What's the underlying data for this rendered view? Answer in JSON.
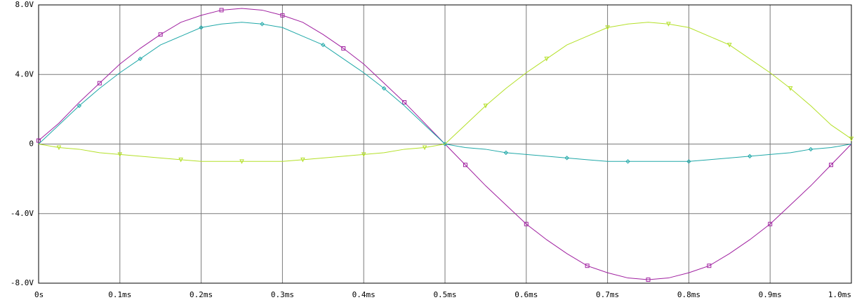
{
  "chart_data": {
    "type": "line",
    "x": [
      0,
      0.025,
      0.05,
      0.075,
      0.1,
      0.125,
      0.15,
      0.175,
      0.2,
      0.225,
      0.25,
      0.275,
      0.3,
      0.325,
      0.35,
      0.375,
      0.4,
      0.425,
      0.45,
      0.475,
      0.5,
      0.525,
      0.55,
      0.575,
      0.6,
      0.625,
      0.65,
      0.675,
      0.7,
      0.725,
      0.75,
      0.775,
      0.8,
      0.825,
      0.85,
      0.875,
      0.9,
      0.925,
      0.95,
      0.975,
      1.0
    ],
    "series": [
      {
        "color": "#a020a0",
        "marker": "square",
        "values": [
          0.2,
          1.2,
          2.4,
          3.5,
          4.6,
          5.5,
          6.3,
          7.0,
          7.4,
          7.7,
          7.8,
          7.7,
          7.4,
          7.0,
          6.3,
          5.5,
          4.6,
          3.5,
          2.4,
          1.2,
          0,
          -1.2,
          -2.4,
          -3.5,
          -4.6,
          -5.5,
          -6.3,
          -7.0,
          -7.4,
          -7.7,
          -7.8,
          -7.7,
          -7.4,
          -7.0,
          -6.3,
          -5.5,
          -4.6,
          -3.5,
          -2.4,
          -1.2,
          0
        ]
      },
      {
        "color": "#20a8a8",
        "marker": "diamond",
        "values": [
          0,
          1.1,
          2.2,
          3.2,
          4.1,
          4.9,
          5.7,
          6.2,
          6.7,
          6.9,
          7.0,
          6.9,
          6.7,
          6.2,
          5.7,
          4.9,
          4.1,
          3.2,
          2.2,
          1.1,
          0,
          -0.2,
          -0.3,
          -0.5,
          -0.6,
          -0.7,
          -0.8,
          -0.9,
          -1.0,
          -1.0,
          -1.0,
          -1.0,
          -1.0,
          -0.9,
          -0.8,
          -0.7,
          -0.6,
          -0.5,
          -0.3,
          -0.2,
          0
        ]
      },
      {
        "color": "#b4e028",
        "marker": "triangle",
        "values": [
          0,
          -0.2,
          -0.3,
          -0.5,
          -0.6,
          -0.7,
          -0.8,
          -0.9,
          -1.0,
          -1.0,
          -1.0,
          -1.0,
          -1.0,
          -0.9,
          -0.8,
          -0.7,
          -0.6,
          -0.5,
          -0.3,
          -0.2,
          0,
          1.1,
          2.2,
          3.2,
          4.1,
          4.9,
          5.7,
          6.2,
          6.7,
          6.9,
          7.0,
          6.9,
          6.7,
          6.2,
          5.7,
          4.9,
          4.1,
          3.2,
          2.2,
          1.1,
          0.3
        ]
      }
    ],
    "xlim": [
      0,
      1.0
    ],
    "xticks": [
      {
        "value": 0,
        "label": "0s"
      },
      {
        "value": 0.1,
        "label": "0.1ms"
      },
      {
        "value": 0.2,
        "label": "0.2ms"
      },
      {
        "value": 0.3,
        "label": "0.3ms"
      },
      {
        "value": 0.4,
        "label": "0.4ms"
      },
      {
        "value": 0.5,
        "label": "0.5ms"
      },
      {
        "value": 0.6,
        "label": "0.6ms"
      },
      {
        "value": 0.7,
        "label": "0.7ms"
      },
      {
        "value": 0.8,
        "label": "0.8ms"
      },
      {
        "value": 0.9,
        "label": "0.9ms"
      },
      {
        "value": 1.0,
        "label": "1.0ms"
      }
    ],
    "ylim": [
      -8,
      8
    ],
    "yticks": [
      {
        "value": -8,
        "label": "-8.0V"
      },
      {
        "value": -4,
        "label": "-4.0V"
      },
      0,
      {
        "value": 4,
        "label": "4.0V"
      },
      {
        "value": 8,
        "label": "8.0V"
      }
    ],
    "grid": true
  }
}
